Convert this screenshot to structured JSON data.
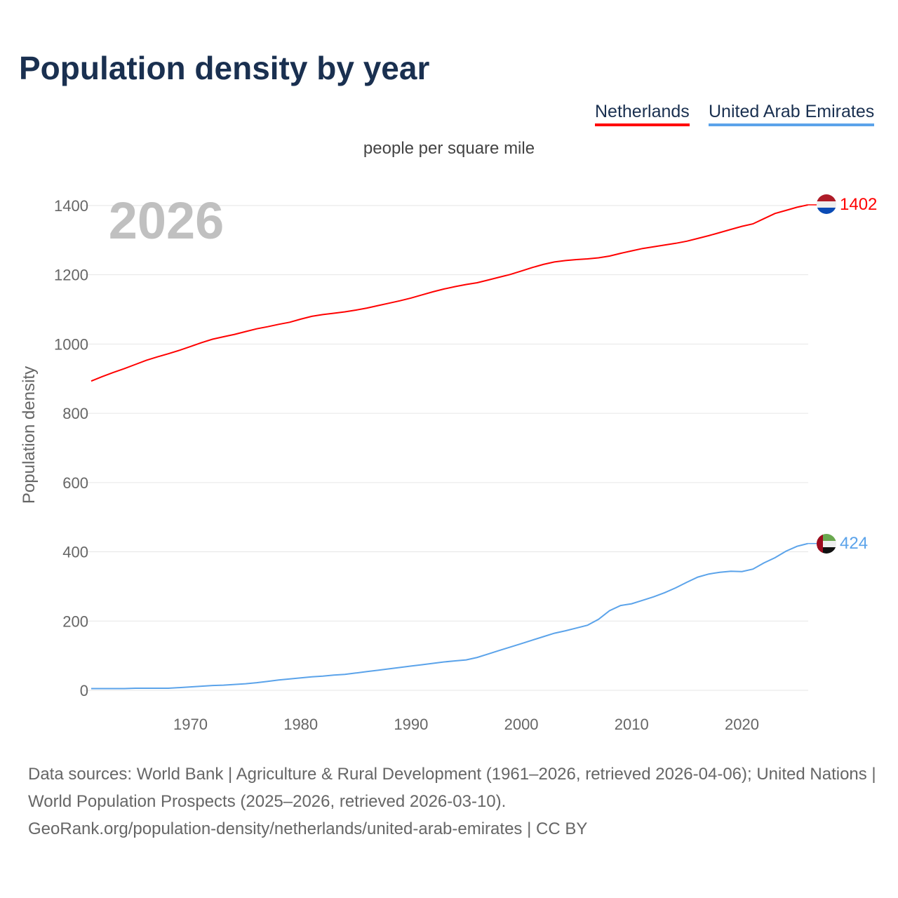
{
  "title": "Population density by year",
  "chart_data": {
    "type": "line",
    "title": "Population density by year",
    "subtitle": "people per square mile",
    "ylabel": "Population density",
    "xlabel": "",
    "ylim": [
      0,
      1400
    ],
    "xlim": [
      1961,
      2026
    ],
    "yticks": [
      "0",
      "200",
      "400",
      "600",
      "800",
      "1000",
      "1200",
      "1400"
    ],
    "xticks": [
      "1970",
      "1980",
      "1990",
      "2000",
      "2010",
      "2020"
    ],
    "year_label": "2026",
    "legend_position": "top-right",
    "x": [
      1961,
      1962,
      1963,
      1964,
      1965,
      1966,
      1967,
      1968,
      1969,
      1970,
      1971,
      1972,
      1973,
      1974,
      1975,
      1976,
      1977,
      1978,
      1979,
      1980,
      1981,
      1982,
      1983,
      1984,
      1985,
      1986,
      1987,
      1988,
      1989,
      1990,
      1991,
      1992,
      1993,
      1994,
      1995,
      1996,
      1997,
      1998,
      1999,
      2000,
      2001,
      2002,
      2003,
      2004,
      2005,
      2006,
      2007,
      2008,
      2009,
      2010,
      2011,
      2012,
      2013,
      2014,
      2015,
      2016,
      2017,
      2018,
      2019,
      2020,
      2021,
      2022,
      2023,
      2024,
      2025,
      2026
    ],
    "series": [
      {
        "name": "Netherlands",
        "color": "#ff0000",
        "end_label": "1402",
        "values": [
          893,
          906,
          918,
          929,
          941,
          953,
          963,
          972,
          982,
          993,
          1004,
          1014,
          1021,
          1028,
          1036,
          1044,
          1050,
          1057,
          1063,
          1072,
          1080,
          1085,
          1089,
          1093,
          1098,
          1104,
          1111,
          1118,
          1125,
          1133,
          1142,
          1151,
          1159,
          1166,
          1172,
          1177,
          1185,
          1193,
          1201,
          1211,
          1221,
          1230,
          1237,
          1241,
          1244,
          1246,
          1249,
          1254,
          1262,
          1269,
          1276,
          1281,
          1286,
          1291,
          1297,
          1305,
          1313,
          1322,
          1331,
          1340,
          1347,
          1362,
          1377,
          1386,
          1395,
          1402
        ]
      },
      {
        "name": "United Arab Emirates",
        "color": "#5ba3ea",
        "end_label": "424",
        "values": [
          5,
          5,
          5,
          5,
          6,
          6,
          6,
          6,
          8,
          10,
          12,
          14,
          15,
          17,
          19,
          22,
          26,
          30,
          33,
          36,
          39,
          41,
          44,
          46,
          50,
          54,
          58,
          62,
          66,
          70,
          74,
          78,
          82,
          85,
          88,
          95,
          105,
          115,
          125,
          135,
          145,
          155,
          165,
          172,
          180,
          188,
          205,
          230,
          245,
          250,
          260,
          270,
          282,
          296,
          312,
          327,
          336,
          341,
          344,
          343,
          350,
          368,
          383,
          402,
          416,
          424
        ]
      }
    ]
  },
  "source": {
    "line1": "Data sources: World Bank | Agriculture & Rural Development (1961–2026, retrieved 2026-04-06); United Nations | World Population Prospects (2025–2026, retrieved 2026-03-10).",
    "line2": "GeoRank.org/population-density/netherlands/united-arab-emirates | CC BY"
  }
}
